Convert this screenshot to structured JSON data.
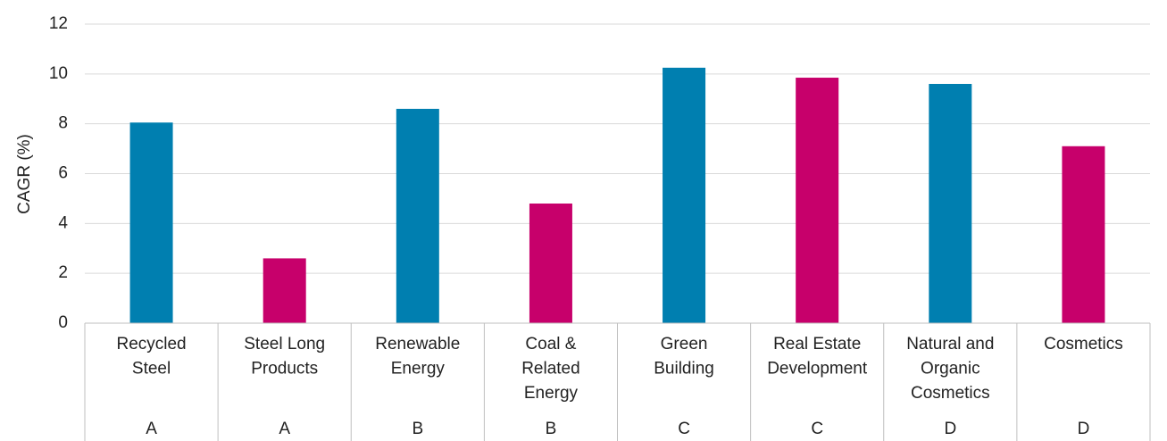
{
  "chart_data": {
    "type": "bar",
    "y_label": "CAGR (%)",
    "categories": [
      [
        "Recycled",
        "Steel"
      ],
      [
        "Steel Long",
        "Products"
      ],
      [
        "Renewable",
        "Energy"
      ],
      [
        "Coal &",
        "Related",
        "Energy"
      ],
      [
        "Green",
        "Building"
      ],
      [
        "Real Estate",
        "Development"
      ],
      [
        "Natural and",
        "Organic",
        "Cosmetics"
      ],
      [
        "Cosmetics"
      ]
    ],
    "groups": [
      "A",
      "A",
      "B",
      "B",
      "C",
      "C",
      "D",
      "D"
    ],
    "values": [
      8.05,
      2.6,
      8.6,
      4.8,
      10.25,
      9.85,
      9.6,
      7.1
    ],
    "colors": [
      "#007fb0",
      "#c7006b",
      "#007fb0",
      "#c7006b",
      "#007fb0",
      "#c7006b",
      "#007fb0",
      "#c7006b"
    ],
    "ylim": [
      0,
      12
    ],
    "yticks": [
      0,
      2,
      4,
      6,
      8,
      10,
      12
    ],
    "grid": true
  }
}
